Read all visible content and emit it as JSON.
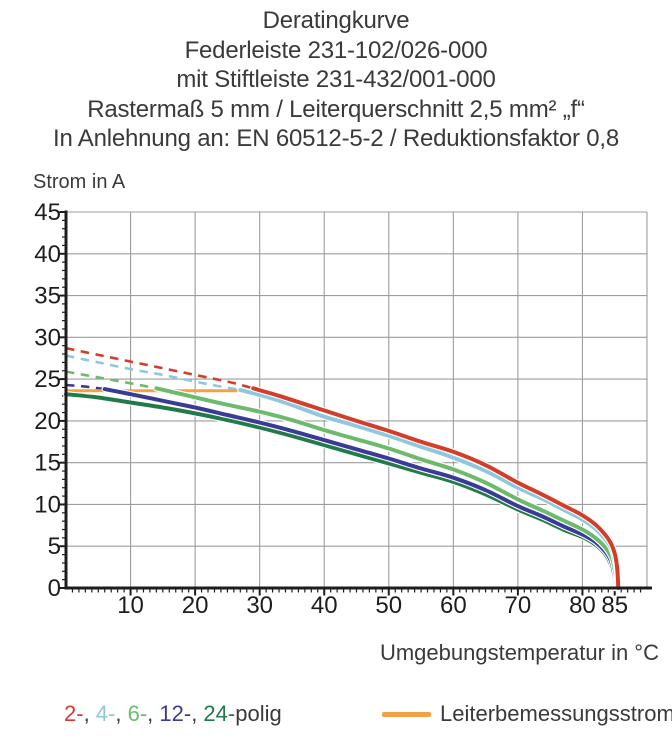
{
  "title_lines": [
    "Deratingkurve",
    "Federleiste 231-102/026-000",
    "mit Stiftleiste 231-432/001-000",
    "Rastermaß 5 mm / Leiterquerschnitt 2,5 mm² „f“",
    "In Anlehnung an: EN 60512-5-2 / Reduktionsfaktor 0,8"
  ],
  "y_axis_title": "Strom in A",
  "x_axis_title": "Umgebungstemperatur in °C",
  "colors": {
    "background": "#ffffff",
    "text": "#3a3a39",
    "axis": "#1d1d1b",
    "grid": "#9d9d9d",
    "pole_2": "#d23e2a",
    "pole_4": "#8fc8dc",
    "pole_6": "#6cbb6c",
    "pole_12": "#3a3b97",
    "pole_24": "#217a48",
    "rated": "#f2a244"
  },
  "legend": {
    "poles": [
      {
        "label": "2-",
        "color": "#d23e2a"
      },
      {
        "label": "4-",
        "color": "#8fc8dc"
      },
      {
        "label": "6-",
        "color": "#6cbb6c"
      },
      {
        "label": "12-",
        "color": "#3a3b97"
      },
      {
        "label": "24-",
        "color": "#217a48"
      }
    ],
    "separator": ", ",
    "suffix": "polig",
    "rated_label": "Leiterbemessungsstrom"
  },
  "chart_data": {
    "type": "line",
    "title": "Deratingkurve",
    "xlabel": "Umgebungstemperatur in °C",
    "ylabel": "Strom in A",
    "xlim": [
      0,
      90
    ],
    "ylim": [
      0,
      45
    ],
    "grid": true,
    "legend_position": "bottom",
    "x_tick_labels": [
      10,
      20,
      30,
      40,
      50,
      60,
      70,
      80,
      85
    ],
    "y_tick_labels": [
      0,
      5,
      10,
      15,
      20,
      25,
      30,
      35,
      40,
      45
    ],
    "x_gridlines": [
      10,
      20,
      30,
      40,
      50,
      60,
      70,
      80,
      90
    ],
    "y_gridlines": [
      5,
      10,
      15,
      20,
      25,
      30,
      35,
      40,
      45
    ],
    "x_minor_step": 1,
    "y_minor_step": 1,
    "note": "dashed = extrapolation above rated conductor current; curves drop to 0 A at 85 °C",
    "series": [
      {
        "name": "2-polig",
        "color": "#d23e2a",
        "dashed": [
          [
            0,
            28.7
          ],
          [
            5,
            27.9
          ],
          [
            10,
            27.1
          ],
          [
            15,
            26.3
          ],
          [
            20,
            25.5
          ],
          [
            25,
            24.7
          ],
          [
            29,
            23.9
          ]
        ],
        "solid": [
          [
            29,
            23.9
          ],
          [
            33,
            23.0
          ],
          [
            37,
            22.0
          ],
          [
            41,
            21.0
          ],
          [
            45,
            20.0
          ],
          [
            50,
            18.8
          ],
          [
            55,
            17.5
          ],
          [
            60,
            16.3
          ],
          [
            65,
            14.7
          ],
          [
            70,
            12.6
          ],
          [
            74,
            11.1
          ],
          [
            77,
            9.9
          ],
          [
            80,
            8.7
          ],
          [
            82,
            7.6
          ],
          [
            83.5,
            6.4
          ],
          [
            84.5,
            5.2
          ],
          [
            85.1,
            3.8
          ],
          [
            85.4,
            2.2
          ],
          [
            85.55,
            0
          ]
        ]
      },
      {
        "name": "4-polig",
        "color": "#8fc8dc",
        "dashed": [
          [
            0,
            27.8
          ],
          [
            5,
            27.0
          ],
          [
            10,
            26.2
          ],
          [
            15,
            25.5
          ],
          [
            20,
            24.7
          ],
          [
            24,
            24.1
          ],
          [
            27,
            23.7
          ]
        ],
        "solid": [
          [
            27,
            23.7
          ],
          [
            31,
            22.9
          ],
          [
            35,
            21.9
          ],
          [
            40,
            20.5
          ],
          [
            45,
            19.4
          ],
          [
            50,
            18.2
          ],
          [
            55,
            16.9
          ],
          [
            60,
            15.6
          ],
          [
            65,
            14.0
          ],
          [
            70,
            12.0
          ],
          [
            74,
            10.6
          ],
          [
            77,
            9.4
          ],
          [
            80,
            8.2
          ],
          [
            82,
            7.1
          ],
          [
            83.5,
            5.9
          ],
          [
            84.5,
            4.7
          ],
          [
            85,
            3.4
          ],
          [
            85.3,
            1.9
          ],
          [
            85.45,
            0
          ]
        ]
      },
      {
        "name": "6-polig",
        "color": "#6cbb6c",
        "dashed": [
          [
            0,
            25.9
          ],
          [
            5,
            25.2
          ],
          [
            10,
            24.5
          ],
          [
            14,
            23.9
          ]
        ],
        "solid": [
          [
            14,
            23.9
          ],
          [
            19,
            23.0
          ],
          [
            24,
            22.1
          ],
          [
            30,
            21.1
          ],
          [
            35,
            20.1
          ],
          [
            40,
            18.9
          ],
          [
            45,
            17.8
          ],
          [
            50,
            16.7
          ],
          [
            55,
            15.4
          ],
          [
            60,
            14.2
          ],
          [
            65,
            12.6
          ],
          [
            70,
            10.6
          ],
          [
            74,
            9.2
          ],
          [
            77,
            8.1
          ],
          [
            80,
            7.0
          ],
          [
            82,
            6.0
          ],
          [
            83.5,
            4.9
          ],
          [
            84.5,
            3.7
          ],
          [
            84.95,
            2.4
          ],
          [
            85.2,
            1.1
          ],
          [
            85.3,
            0
          ]
        ]
      },
      {
        "name": "12-polig",
        "color": "#3a3b97",
        "dashed": [
          [
            0,
            24.3
          ],
          [
            3,
            24.1
          ],
          [
            6,
            23.8
          ]
        ],
        "solid": [
          [
            6,
            23.8
          ],
          [
            10,
            23.2
          ],
          [
            15,
            22.4
          ],
          [
            20,
            21.6
          ],
          [
            25,
            20.7
          ],
          [
            30,
            19.8
          ],
          [
            35,
            18.8
          ],
          [
            40,
            17.7
          ],
          [
            45,
            16.6
          ],
          [
            50,
            15.5
          ],
          [
            55,
            14.3
          ],
          [
            60,
            13.2
          ],
          [
            65,
            11.7
          ],
          [
            70,
            9.8
          ],
          [
            74,
            8.5
          ],
          [
            77,
            7.4
          ],
          [
            80,
            6.4
          ],
          [
            82,
            5.5
          ],
          [
            83.5,
            4.4
          ],
          [
            84.4,
            3.3
          ],
          [
            84.8,
            2.1
          ],
          [
            85.05,
            1.0
          ],
          [
            85.15,
            0
          ]
        ]
      },
      {
        "name": "24-polig",
        "color": "#217a48",
        "solid": [
          [
            0,
            23.2
          ],
          [
            5,
            22.8
          ],
          [
            10,
            22.2
          ],
          [
            15,
            21.6
          ],
          [
            20,
            20.9
          ],
          [
            25,
            20.1
          ],
          [
            30,
            19.2
          ],
          [
            35,
            18.2
          ],
          [
            40,
            17.1
          ],
          [
            45,
            16.0
          ],
          [
            50,
            14.9
          ],
          [
            55,
            13.8
          ],
          [
            60,
            12.7
          ],
          [
            65,
            11.2
          ],
          [
            70,
            9.4
          ],
          [
            74,
            8.1
          ],
          [
            77,
            7.0
          ],
          [
            80,
            6.1
          ],
          [
            82,
            5.2
          ],
          [
            83.5,
            4.1
          ],
          [
            84.3,
            3.0
          ],
          [
            84.7,
            1.9
          ],
          [
            84.95,
            0.8
          ],
          [
            85.05,
            0
          ]
        ]
      },
      {
        "name": "Leiterbemessungsstrom",
        "color": "#f2a244",
        "role": "rated",
        "solid": [
          [
            0,
            23.6
          ],
          [
            28,
            23.6
          ]
        ]
      }
    ]
  }
}
